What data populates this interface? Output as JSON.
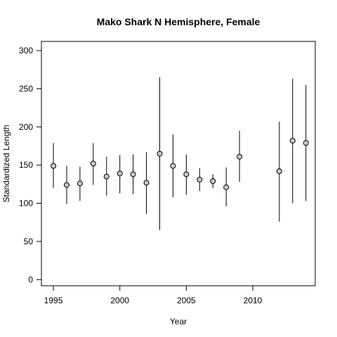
{
  "chart_data": {
    "type": "scatter",
    "title": "Mako Shark N Hemisphere,  Female",
    "xlabel": "Year",
    "ylabel": "Standardized Length",
    "xlim": [
      1994.1,
      2014.7
    ],
    "ylim": [
      -8,
      312
    ],
    "x_ticks": [
      1995,
      2000,
      2005,
      2010
    ],
    "y_ticks": [
      0,
      50,
      100,
      150,
      200,
      250,
      300
    ],
    "grid": false,
    "legend": "none",
    "marker_fill": "#c8c8c8",
    "points": [
      {
        "x": 1995,
        "y": 149,
        "lower": 120,
        "upper": 179
      },
      {
        "x": 1996,
        "y": 124,
        "lower": 99,
        "upper": 149
      },
      {
        "x": 1997,
        "y": 126,
        "lower": 103,
        "upper": 148
      },
      {
        "x": 1998,
        "y": 152,
        "lower": 124,
        "upper": 179
      },
      {
        "x": 1999,
        "y": 135,
        "lower": 110,
        "upper": 161
      },
      {
        "x": 2000,
        "y": 139,
        "lower": 113,
        "upper": 163
      },
      {
        "x": 2001,
        "y": 138,
        "lower": 112,
        "upper": 164
      },
      {
        "x": 2002,
        "y": 127,
        "lower": 86,
        "upper": 167
      },
      {
        "x": 2003,
        "y": 165,
        "lower": 65,
        "upper": 265
      },
      {
        "x": 2004,
        "y": 149,
        "lower": 108,
        "upper": 190
      },
      {
        "x": 2005,
        "y": 138,
        "lower": 111,
        "upper": 164
      },
      {
        "x": 2006,
        "y": 131,
        "lower": 116,
        "upper": 146
      },
      {
        "x": 2007,
        "y": 129,
        "lower": 120,
        "upper": 138
      },
      {
        "x": 2008,
        "y": 121,
        "lower": 96,
        "upper": 147
      },
      {
        "x": 2009,
        "y": 161,
        "lower": 128,
        "upper": 195
      },
      {
        "x": 2012,
        "y": 142,
        "lower": 76,
        "upper": 207
      },
      {
        "x": 2013,
        "y": 182,
        "lower": 100,
        "upper": 263
      },
      {
        "x": 2014,
        "y": 179,
        "lower": 103,
        "upper": 255
      }
    ]
  }
}
